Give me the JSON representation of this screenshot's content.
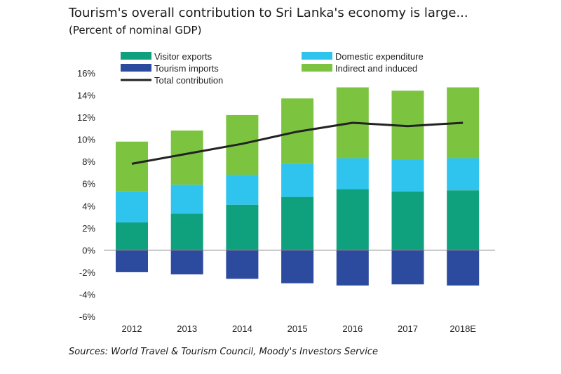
{
  "title": "Tourism's overall contribution to Sri Lanka's economy is large...",
  "subtitle": "(Percent of nominal GDP)",
  "source": "Sources: World Travel & Tourism Council, Moody's Investors Service",
  "colors": {
    "visitor_exports": "#0fa07e",
    "tourism_imports": "#2c4a9e",
    "domestic_expenditure": "#2ec4ee",
    "indirect_induced": "#7cc440",
    "total_line": "#222222",
    "zero_line": "#888888"
  },
  "chart_data": {
    "type": "bar",
    "stacked": true,
    "categories": [
      "2012",
      "2013",
      "2014",
      "2015",
      "2016",
      "2017",
      "2018E"
    ],
    "series": [
      {
        "name": "Visitor exports",
        "type": "bar",
        "values": [
          2.5,
          3.3,
          4.1,
          4.8,
          5.5,
          5.3,
          5.4
        ]
      },
      {
        "name": "Domestic expenditure",
        "type": "bar",
        "values": [
          2.8,
          2.6,
          2.7,
          3.0,
          2.8,
          2.9,
          2.9
        ]
      },
      {
        "name": "Indirect and induced",
        "type": "bar",
        "values": [
          4.5,
          4.9,
          5.4,
          5.9,
          6.4,
          6.2,
          6.4
        ]
      },
      {
        "name": "Tourism imports",
        "type": "bar",
        "values": [
          -2.0,
          -2.2,
          -2.6,
          -3.0,
          -3.2,
          -3.1,
          -3.2
        ]
      },
      {
        "name": "Total contribution",
        "type": "line",
        "values": [
          7.8,
          8.7,
          9.6,
          10.7,
          11.5,
          11.2,
          11.5
        ]
      }
    ],
    "y_ticks": [
      "16%",
      "14%",
      "12%",
      "10%",
      "8%",
      "6%",
      "4%",
      "2%",
      "0%",
      "-2%",
      "-4%",
      "-6%"
    ],
    "ylim": [
      -6,
      16
    ],
    "xlabel": "",
    "ylabel": "",
    "grid": false,
    "legend_position": "top"
  }
}
